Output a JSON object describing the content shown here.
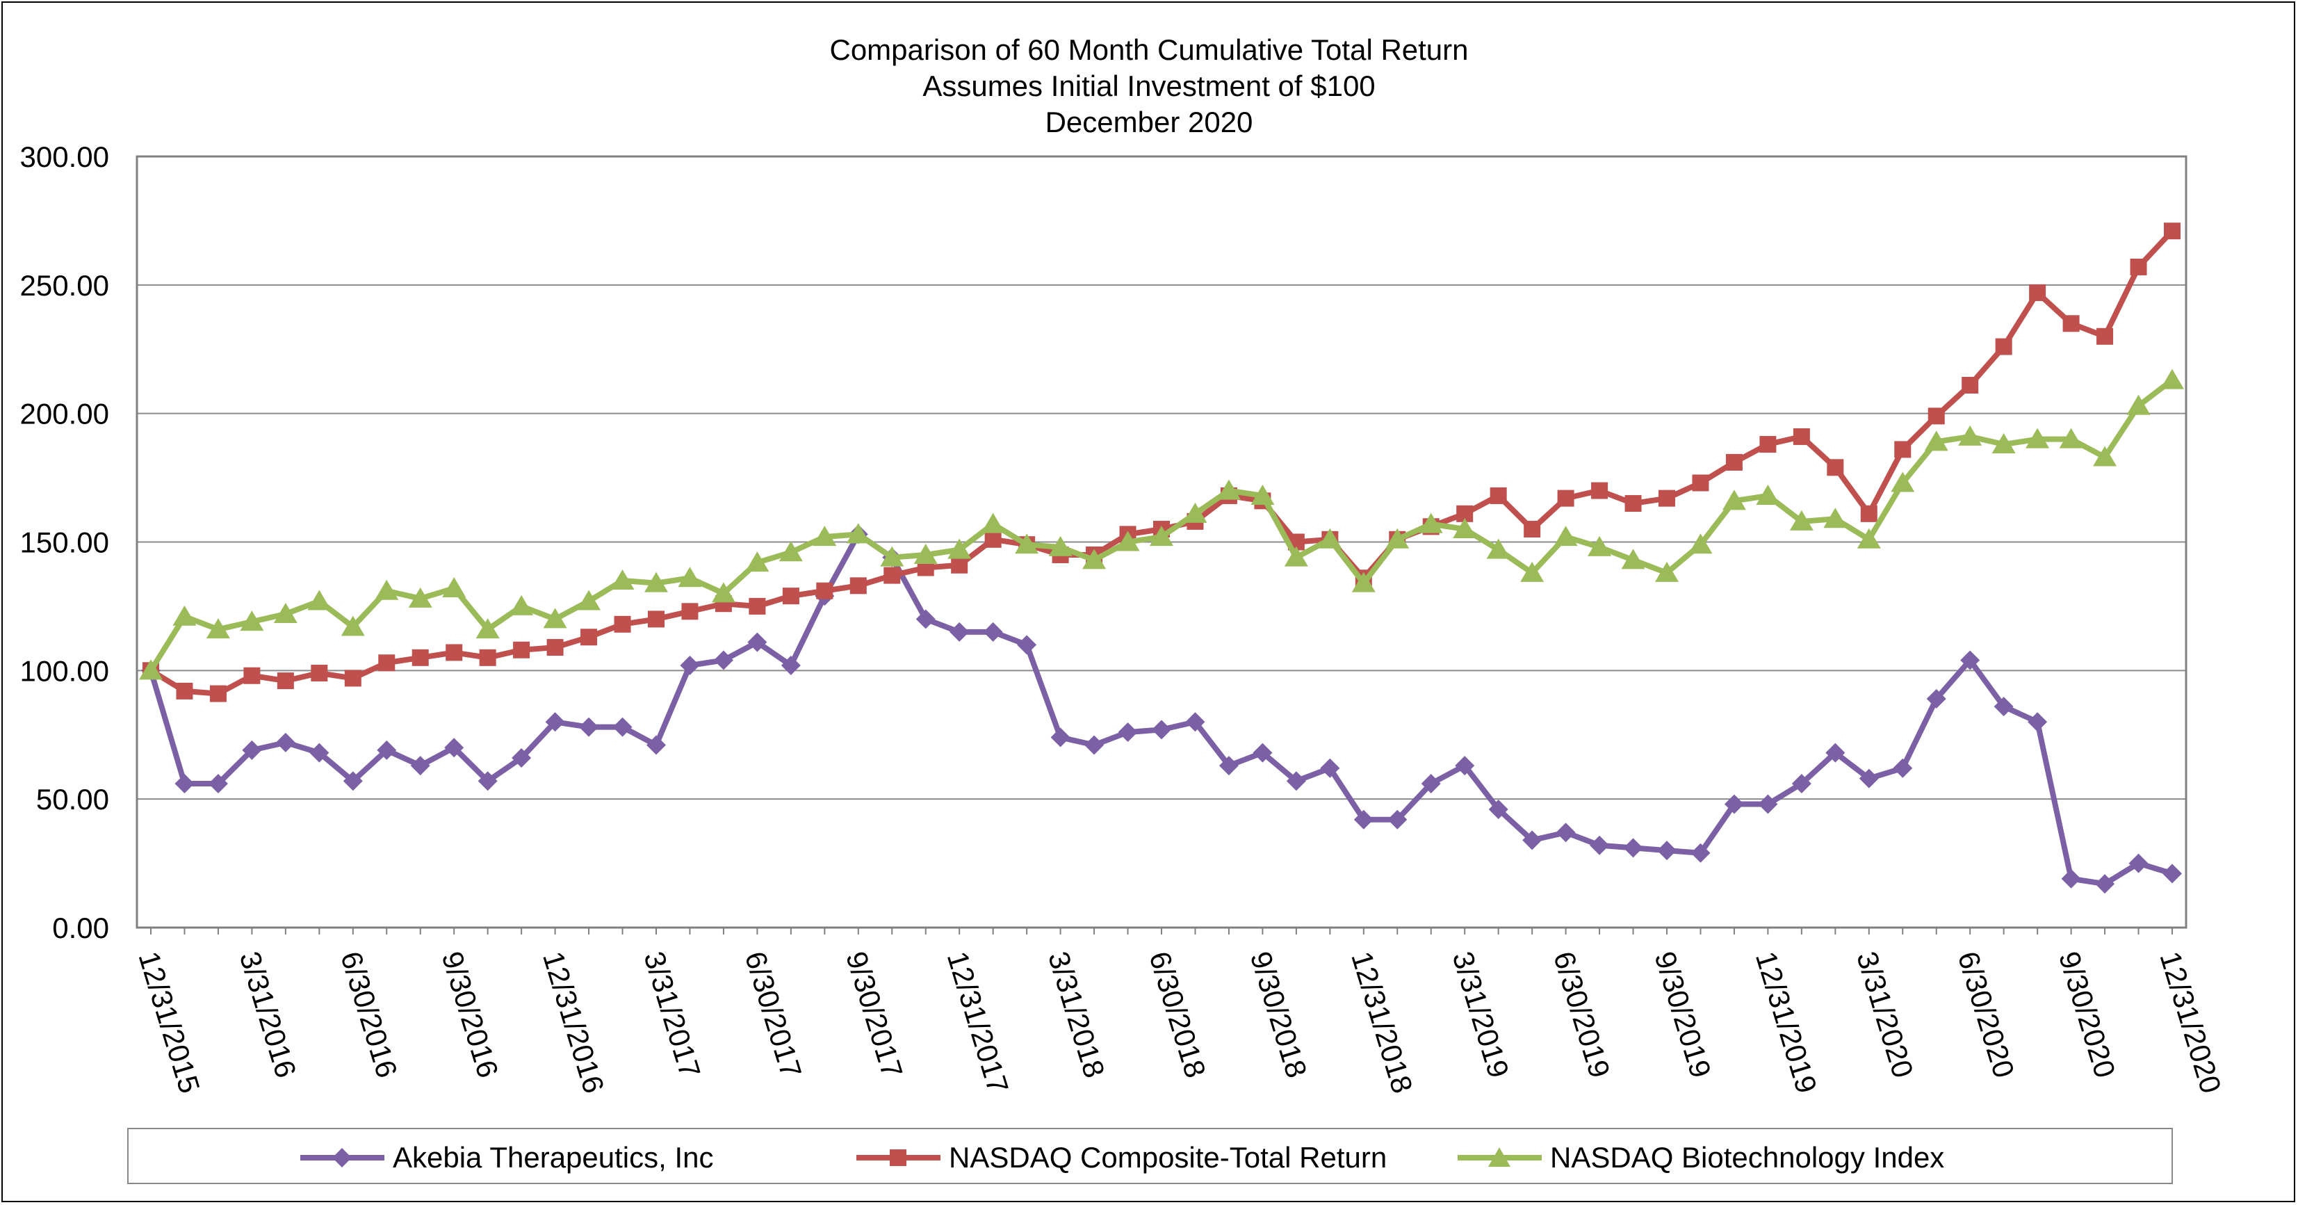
{
  "chart_data": {
    "type": "line",
    "title_lines": [
      "Comparison of 60 Month Cumulative Total Return",
      "Assumes Initial Investment of $100",
      "December 2020"
    ],
    "ylim": [
      0,
      300
    ],
    "yticks": [
      "0.00",
      "50.00",
      "100.00",
      "150.00",
      "200.00",
      "250.00",
      "300.00"
    ],
    "yticks_values": [
      0,
      50,
      100,
      150,
      200,
      250,
      300
    ],
    "xtick_labels": [
      "12/31/2015",
      "3/31/2016",
      "6/30/2016",
      "9/30/2016",
      "12/31/2016",
      "3/31/2017",
      "6/30/2017",
      "9/30/2017",
      "12/31/2017",
      "3/31/2018",
      "6/30/2018",
      "9/30/2018",
      "12/31/2018",
      "3/31/2019",
      "6/30/2019",
      "9/30/2019",
      "12/31/2019",
      "3/31/2020",
      "6/30/2020",
      "9/30/2020",
      "12/31/2020"
    ],
    "xtick_every": 3,
    "num_points": 61,
    "series": [
      {
        "name": "Akebia Therapeutics, Inc",
        "color": "#7B60A6",
        "marker": "diamond",
        "values": [
          100,
          56,
          56,
          69,
          72,
          68,
          57,
          69,
          63,
          70,
          57,
          66,
          80,
          78,
          78,
          71,
          102,
          104,
          111,
          102,
          129,
          153,
          144,
          120,
          115,
          115,
          110,
          74,
          71,
          76,
          77,
          80,
          63,
          68,
          57,
          62,
          42,
          42,
          56,
          63,
          46,
          34,
          37,
          32,
          31,
          30,
          29,
          48,
          48,
          56,
          68,
          58,
          62,
          89,
          104,
          86,
          80,
          19,
          17,
          25,
          21
        ]
      },
      {
        "name": "NASDAQ Composite-Total Return",
        "color": "#C0504D",
        "marker": "square",
        "values": [
          100,
          92,
          91,
          98,
          96,
          99,
          97,
          103,
          105,
          107,
          105,
          108,
          109,
          113,
          118,
          120,
          123,
          126,
          125,
          129,
          131,
          133,
          137,
          140,
          141,
          151,
          149,
          145,
          145,
          153,
          155,
          158,
          168,
          166,
          150,
          151,
          136,
          151,
          156,
          161,
          168,
          155,
          167,
          170,
          165,
          167,
          173,
          181,
          188,
          191,
          179,
          161,
          186,
          199,
          211,
          226,
          247,
          235,
          230,
          257,
          271
        ]
      },
      {
        "name": "NASDAQ Biotechnology Index",
        "color": "#9BBB59",
        "marker": "triangle",
        "values": [
          100,
          121,
          116,
          119,
          122,
          127,
          117,
          131,
          128,
          132,
          116,
          125,
          120,
          127,
          135,
          134,
          136,
          130,
          142,
          146,
          152,
          153,
          144,
          145,
          147,
          157,
          149,
          148,
          143,
          150,
          152,
          161,
          170,
          168,
          144,
          151,
          134,
          151,
          157,
          155,
          147,
          138,
          152,
          148,
          143,
          138,
          149,
          166,
          168,
          158,
          159,
          151,
          173,
          189,
          191,
          188,
          190,
          190,
          183,
          203,
          213
        ]
      }
    ]
  }
}
